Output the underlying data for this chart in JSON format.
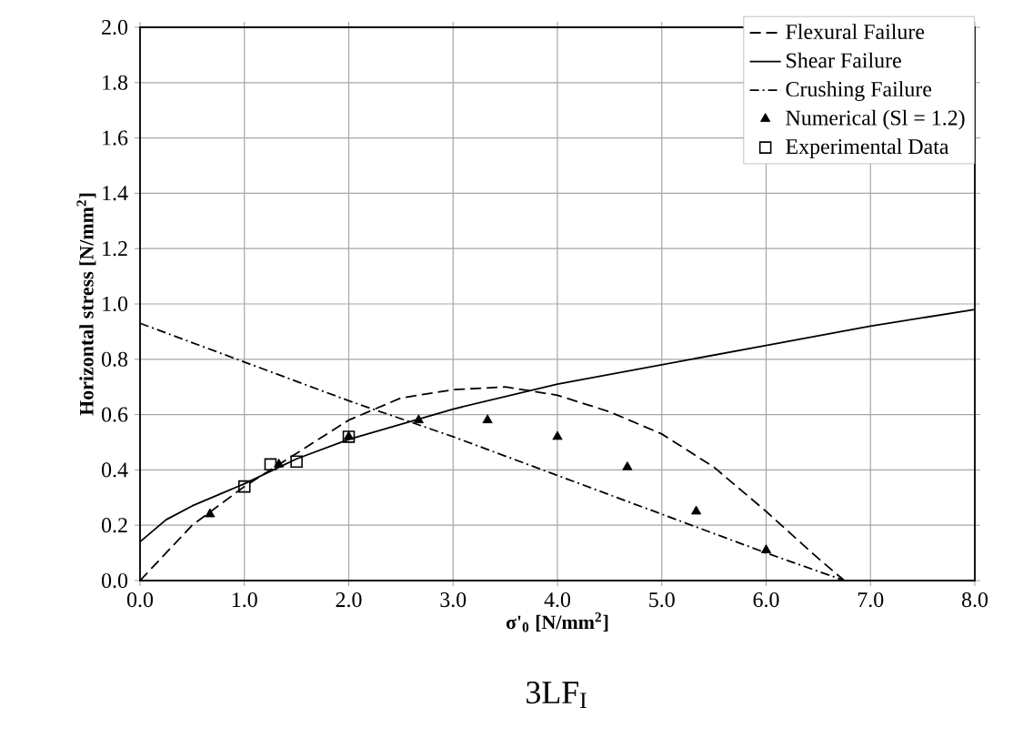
{
  "chart_data": {
    "type": "line",
    "title": "3LF$_{I}$",
    "xlabel": "σ'$_{0}$ [N/mm$^{2}$]",
    "ylabel": "Horizontal stress [N/mm$^{2}$]",
    "xlim": [
      0,
      8
    ],
    "ylim": [
      0,
      2
    ],
    "xticks": [
      {
        "value": 0,
        "label": "0.0"
      },
      {
        "value": 1,
        "label": "1.0"
      },
      {
        "value": 2,
        "label": "2.0"
      },
      {
        "value": 3,
        "label": "3.0"
      },
      {
        "value": 4,
        "label": "4.0"
      },
      {
        "value": 5,
        "label": "5.0"
      },
      {
        "value": 6,
        "label": "6.0"
      },
      {
        "value": 7,
        "label": "7.0"
      },
      {
        "value": 8,
        "label": "8.0"
      }
    ],
    "yticks": [
      {
        "value": 0,
        "label": "0.0"
      },
      {
        "value": 0.2,
        "label": "0.2"
      },
      {
        "value": 0.4,
        "label": "0.4"
      },
      {
        "value": 0.6,
        "label": "0.6"
      },
      {
        "value": 0.8,
        "label": "0.8"
      },
      {
        "value": 1.0,
        "label": "1.0"
      },
      {
        "value": 1.2,
        "label": "1.2"
      },
      {
        "value": 1.4,
        "label": "1.4"
      },
      {
        "value": 1.6,
        "label": "1.6"
      },
      {
        "value": 1.8,
        "label": "1.8"
      },
      {
        "value": 2.0,
        "label": "2.0"
      }
    ],
    "grid": true,
    "legend": "top right",
    "series": [
      {
        "name": "Flexural Failure",
        "color": "#000000",
        "line_style": "dashed",
        "marker": "none",
        "x": [
          0,
          0.5,
          1,
          1.5,
          2,
          2.5,
          3,
          3.5,
          4,
          4.5,
          5,
          5.5,
          6,
          6.5,
          6.75
        ],
        "values": [
          0,
          0.2,
          0.34,
          0.46,
          0.58,
          0.66,
          0.69,
          0.7,
          0.67,
          0.61,
          0.53,
          0.41,
          0.25,
          0.08,
          0
        ]
      },
      {
        "name": "Shear Failure",
        "color": "#000000",
        "line_style": "solid",
        "marker": "none",
        "x": [
          0,
          0.25,
          0.5,
          1,
          1.5,
          2,
          3,
          4,
          5,
          6,
          7,
          8
        ],
        "values": [
          0.14,
          0.22,
          0.27,
          0.35,
          0.44,
          0.51,
          0.62,
          0.71,
          0.78,
          0.85,
          0.92,
          0.98
        ]
      },
      {
        "name": "Crushing Failure",
        "color": "#000000",
        "line_style": "dashdotted",
        "marker": "none",
        "x": [
          0,
          1,
          2,
          3,
          4,
          5,
          6,
          6.75
        ],
        "values": [
          0.93,
          0.79,
          0.65,
          0.52,
          0.38,
          0.24,
          0.1,
          0
        ]
      },
      {
        "name": "Numerical (Sl = 1.2)",
        "type": "scatter",
        "color": "#000000",
        "marker": "triangle",
        "x": [
          0.67,
          1.33,
          2.0,
          2.67,
          3.33,
          4.0,
          4.67,
          5.33,
          6.0
        ],
        "values": [
          0.24,
          0.42,
          0.52,
          0.58,
          0.58,
          0.52,
          0.41,
          0.25,
          0.11
        ]
      },
      {
        "name": "Experimental Data",
        "type": "scatter",
        "color": "#000000",
        "marker": "square",
        "x": [
          1.0,
          1.25,
          1.5,
          2.0
        ],
        "values": [
          0.34,
          0.42,
          0.43,
          0.52
        ]
      }
    ]
  }
}
